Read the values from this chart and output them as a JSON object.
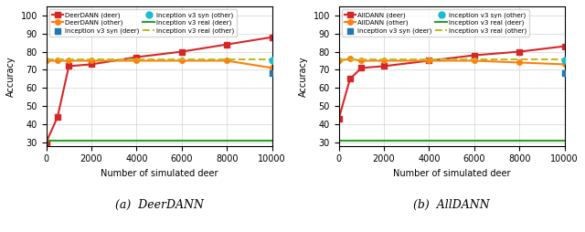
{
  "deer_dann_deer_x": [
    0,
    500,
    1000,
    2000,
    4000,
    6000,
    8000,
    10000
  ],
  "deer_dann_deer_y": [
    30,
    44,
    72,
    73,
    77,
    80,
    84,
    88
  ],
  "deer_dann_other_x": [
    0,
    500,
    1000,
    2000,
    4000,
    6000,
    8000,
    10000
  ],
  "deer_dann_other_y": [
    75,
    75,
    75,
    75,
    75,
    75,
    75,
    71
  ],
  "deer_inception_syn_deer_x": [
    10000
  ],
  "deer_inception_syn_deer_y": [
    68
  ],
  "deer_inception_syn_other_x": [
    10000
  ],
  "deer_inception_syn_other_y": [
    75
  ],
  "deer_inception_real_deer": 31,
  "deer_inception_real_other": 75.5,
  "alldann_deer_x": [
    0,
    500,
    1000,
    2000,
    4000,
    6000,
    8000,
    10000
  ],
  "alldann_deer_y": [
    43,
    65,
    71,
    72,
    75,
    78,
    80,
    83
  ],
  "alldann_other_x": [
    0,
    500,
    1000,
    2000,
    4000,
    6000,
    8000,
    10000
  ],
  "alldann_other_y": [
    75,
    76,
    75,
    75,
    75,
    75,
    74,
    73
  ],
  "all_inception_syn_deer_x": [
    10000
  ],
  "all_inception_syn_deer_y": [
    68
  ],
  "all_inception_syn_other_x": [
    10000
  ],
  "all_inception_syn_other_y": [
    75
  ],
  "all_inception_real_deer": 31,
  "all_inception_real_other": 75.5,
  "xlabel": "Number of simulated deer",
  "ylabel": "Accuracy",
  "xlim": [
    0,
    10000
  ],
  "ylim": [
    28,
    105
  ],
  "yticks": [
    30,
    40,
    50,
    60,
    70,
    80,
    90,
    100
  ],
  "xticks": [
    0,
    2000,
    4000,
    6000,
    8000,
    10000
  ],
  "color_red": "#d62728",
  "color_orange": "#ff7f0e",
  "color_blue": "#1f77b4",
  "color_cyan": "#17becf",
  "color_green": "#2ca02c",
  "color_green_dashed": "#bcbd22",
  "label_a": "(a)  DeerDANN",
  "label_b": "(b)  AllDANN",
  "legend_deer_dann_deer": "DeerDANN (deer)",
  "legend_deer_dann_other": "DeerDANN (other)",
  "legend_inception_syn_deer": "Inception v3 syn (deer)",
  "legend_inception_syn_other": "Inception v3 syn (other)",
  "legend_inception_real_deer": "Inception v3 real (deer)",
  "legend_inception_real_other": "Inception v3 real (other)",
  "legend_all_dann_deer": "AllDANN (deer)",
  "legend_all_dann_other": "AllDANN (other)"
}
